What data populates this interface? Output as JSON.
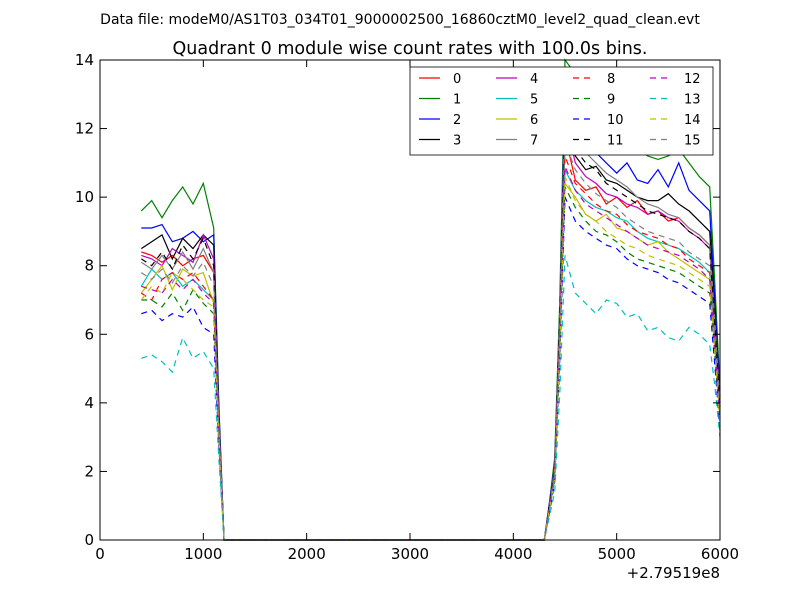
{
  "chart_data": {
    "type": "line",
    "suptitle": "Data file: modeM0/AS1T03_034T01_9000002500_16860cztM0_level2_quad_clean.evt",
    "title": "Quadrant 0 module wise count rates with 100.0s bins.",
    "xlabel": "",
    "ylabel": "",
    "xlim": [
      0,
      6000
    ],
    "ylim": [
      0,
      14
    ],
    "xticks": [
      "0",
      "1000",
      "2000",
      "3000",
      "4000",
      "5000",
      "6000"
    ],
    "yticks": [
      "0",
      "2",
      "4",
      "6",
      "8",
      "10",
      "12",
      "14"
    ],
    "x_offset_label": "+2.79519e8",
    "legend_position": "top-right",
    "legend_columns": 4,
    "x": [
      400,
      500,
      600,
      700,
      800,
      900,
      1000,
      1100,
      1150,
      1200,
      1300,
      4300,
      4350,
      4400,
      4450,
      4500,
      4600,
      4700,
      4800,
      4900,
      5000,
      5100,
      5200,
      5300,
      5400,
      5500,
      5600,
      5700,
      5800,
      5900,
      5950,
      6000
    ],
    "series": [
      {
        "name": "0",
        "color": "#ff0000",
        "dash": "solid",
        "values": [
          8.4,
          8.3,
          8.1,
          8.3,
          8.0,
          8.2,
          8.3,
          7.8,
          3.5,
          0.0,
          0.0,
          0.0,
          1.0,
          2.0,
          6.0,
          11.8,
          10.5,
          10.2,
          10.3,
          9.8,
          10.0,
          9.7,
          9.9,
          9.5,
          9.6,
          9.3,
          9.4,
          9.1,
          8.9,
          8.6,
          6.5,
          4.0
        ]
      },
      {
        "name": "1",
        "color": "#008000",
        "dash": "solid",
        "values": [
          9.6,
          9.9,
          9.4,
          9.9,
          10.3,
          9.8,
          10.4,
          9.1,
          4.0,
          0.0,
          0.0,
          0.0,
          1.1,
          2.4,
          7.0,
          14.0,
          13.6,
          13.2,
          12.8,
          12.4,
          12.0,
          11.7,
          11.4,
          11.2,
          11.1,
          11.2,
          11.4,
          11.0,
          10.6,
          10.3,
          7.5,
          4.4
        ]
      },
      {
        "name": "2",
        "color": "#0000ff",
        "dash": "solid",
        "values": [
          9.1,
          9.1,
          9.2,
          8.7,
          8.8,
          9.0,
          8.7,
          8.9,
          3.9,
          0.0,
          0.0,
          0.0,
          1.1,
          2.2,
          6.6,
          13.1,
          12.3,
          11.7,
          11.3,
          11.0,
          10.7,
          11.0,
          10.5,
          10.4,
          10.8,
          10.3,
          11.0,
          10.2,
          9.9,
          9.6,
          7.0,
          4.2
        ]
      },
      {
        "name": "3",
        "color": "#000000",
        "dash": "solid",
        "values": [
          8.5,
          8.7,
          8.9,
          8.2,
          8.8,
          8.5,
          8.9,
          8.6,
          3.7,
          0.0,
          0.0,
          0.0,
          1.0,
          2.1,
          6.4,
          12.1,
          11.2,
          10.8,
          10.9,
          10.5,
          10.4,
          10.2,
          10.0,
          9.9,
          9.9,
          10.1,
          9.8,
          9.6,
          9.3,
          9.0,
          6.6,
          4.0
        ]
      },
      {
        "name": "4",
        "color": "#bf00bf",
        "dash": "solid",
        "values": [
          8.3,
          8.2,
          8.0,
          8.5,
          8.3,
          8.1,
          8.9,
          8.2,
          3.6,
          0.0,
          0.0,
          0.0,
          1.0,
          2.0,
          6.2,
          12.3,
          11.0,
          10.6,
          10.4,
          10.1,
          10.0,
          9.8,
          9.7,
          9.5,
          9.6,
          9.4,
          9.3,
          9.0,
          8.8,
          8.5,
          6.3,
          3.9
        ]
      },
      {
        "name": "5",
        "color": "#00bfbf",
        "dash": "solid",
        "values": [
          7.4,
          7.9,
          7.6,
          7.8,
          7.4,
          7.6,
          7.3,
          7.0,
          3.2,
          0.0,
          0.0,
          0.0,
          0.9,
          1.8,
          5.8,
          10.8,
          10.2,
          9.9,
          9.7,
          9.6,
          9.4,
          9.3,
          9.0,
          8.8,
          8.7,
          8.6,
          8.5,
          8.3,
          8.1,
          7.8,
          5.8,
          3.6
        ]
      },
      {
        "name": "6",
        "color": "#bfbf00",
        "dash": "solid",
        "values": [
          7.2,
          7.6,
          8.0,
          7.3,
          7.9,
          7.7,
          7.8,
          6.9,
          3.1,
          0.0,
          0.0,
          0.0,
          0.9,
          1.8,
          5.6,
          10.4,
          10.0,
          9.5,
          9.3,
          9.5,
          9.1,
          9.0,
          8.8,
          8.6,
          8.7,
          8.4,
          8.2,
          8.0,
          7.8,
          7.6,
          5.6,
          3.5
        ]
      },
      {
        "name": "7",
        "color": "#808080",
        "dash": "solid",
        "values": [
          8.1,
          7.9,
          8.3,
          7.9,
          8.4,
          7.9,
          8.5,
          7.8,
          3.5,
          0.0,
          0.0,
          0.0,
          1.0,
          2.1,
          6.6,
          12.5,
          11.6,
          11.3,
          11.0,
          10.7,
          10.5,
          10.3,
          10.0,
          9.8,
          9.7,
          9.5,
          9.4,
          9.1,
          8.9,
          8.6,
          6.4,
          3.9
        ]
      },
      {
        "name": "8",
        "color": "#ff0000",
        "dash": "dashed",
        "values": [
          7.2,
          7.0,
          7.6,
          7.8,
          7.6,
          7.8,
          7.4,
          7.0,
          3.2,
          0.0,
          0.0,
          0.0,
          0.9,
          1.9,
          5.9,
          11.2,
          10.4,
          10.1,
          9.8,
          9.6,
          9.5,
          9.2,
          9.0,
          8.9,
          8.8,
          8.6,
          8.5,
          8.2,
          8.0,
          7.8,
          5.8,
          3.6
        ]
      },
      {
        "name": "9",
        "color": "#008000",
        "dash": "dashed",
        "values": [
          7.0,
          7.0,
          6.8,
          7.2,
          6.7,
          7.3,
          6.9,
          6.6,
          3.0,
          0.0,
          0.0,
          0.0,
          0.9,
          1.8,
          5.5,
          10.3,
          9.7,
          9.3,
          9.0,
          8.9,
          8.7,
          8.4,
          8.2,
          8.1,
          8.0,
          7.9,
          7.8,
          7.6,
          7.4,
          7.2,
          5.4,
          3.3
        ]
      },
      {
        "name": "10",
        "color": "#0000ff",
        "dash": "dashed",
        "values": [
          6.6,
          6.7,
          6.4,
          6.6,
          6.5,
          6.8,
          6.2,
          6.0,
          2.8,
          0.0,
          0.0,
          0.0,
          0.8,
          1.7,
          5.3,
          10.0,
          9.3,
          9.0,
          8.8,
          8.6,
          8.5,
          8.2,
          8.0,
          7.9,
          7.8,
          7.6,
          7.5,
          7.3,
          7.1,
          6.9,
          5.1,
          3.2
        ]
      },
      {
        "name": "11",
        "color": "#000000",
        "dash": "dashed",
        "values": [
          8.2,
          8.0,
          8.4,
          7.9,
          8.6,
          8.2,
          8.8,
          8.0,
          3.6,
          0.0,
          0.0,
          0.0,
          1.0,
          2.0,
          6.5,
          12.2,
          11.4,
          11.0,
          10.8,
          10.4,
          10.2,
          10.0,
          9.8,
          9.6,
          9.5,
          9.4,
          9.3,
          9.0,
          8.8,
          8.5,
          6.3,
          3.9
        ]
      },
      {
        "name": "12",
        "color": "#bf00bf",
        "dash": "dashed",
        "values": [
          7.4,
          7.3,
          7.2,
          7.6,
          7.3,
          7.6,
          7.2,
          6.9,
          3.1,
          0.0,
          0.0,
          0.0,
          0.9,
          1.9,
          5.8,
          10.9,
          10.2,
          9.8,
          9.6,
          9.4,
          9.2,
          9.0,
          8.8,
          8.6,
          8.5,
          8.4,
          8.3,
          8.1,
          7.9,
          7.6,
          5.7,
          3.5
        ]
      },
      {
        "name": "13",
        "color": "#00bfbf",
        "dash": "dashed",
        "values": [
          5.3,
          5.4,
          5.2,
          4.9,
          5.9,
          5.3,
          5.5,
          5.0,
          2.4,
          0.0,
          0.0,
          0.0,
          0.7,
          1.4,
          4.3,
          8.3,
          7.2,
          6.9,
          6.6,
          7.0,
          6.9,
          6.5,
          6.6,
          6.1,
          6.2,
          5.9,
          5.8,
          6.2,
          6.0,
          5.7,
          4.5,
          3.0
        ]
      },
      {
        "name": "14",
        "color": "#bfbf00",
        "dash": "dashed",
        "values": [
          7.0,
          7.4,
          7.2,
          7.8,
          7.6,
          7.3,
          7.0,
          6.8,
          3.1,
          0.0,
          0.0,
          0.0,
          0.9,
          1.8,
          5.6,
          10.6,
          9.9,
          9.5,
          9.3,
          9.0,
          8.8,
          8.6,
          8.5,
          8.3,
          8.2,
          8.1,
          8.0,
          7.8,
          7.6,
          7.4,
          5.5,
          3.4
        ]
      },
      {
        "name": "15",
        "color": "#808080",
        "dash": "dashed",
        "values": [
          7.8,
          7.6,
          7.9,
          7.5,
          8.0,
          7.7,
          8.1,
          7.4,
          3.4,
          0.0,
          0.0,
          0.0,
          0.9,
          1.9,
          6.0,
          11.6,
          10.8,
          10.4,
          10.1,
          9.9,
          9.7,
          9.4,
          9.2,
          9.0,
          8.9,
          8.8,
          8.7,
          8.4,
          8.2,
          8.0,
          5.9,
          3.7
        ]
      }
    ]
  }
}
